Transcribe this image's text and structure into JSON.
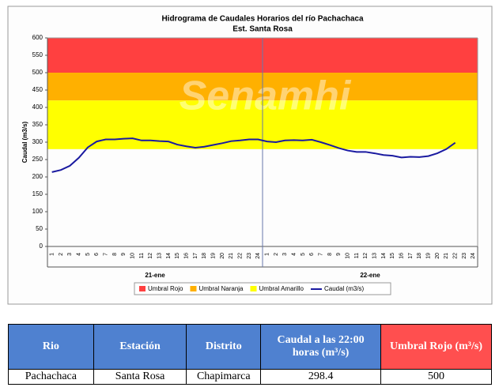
{
  "chart_data": {
    "type": "line",
    "title": "Hidrograma de Caudales Horarios del río Pachachaca",
    "subtitle": "Est. Santa Rosa",
    "y_label": "Caudal (m3/s)",
    "watermark": "Senamhi",
    "categories": [
      "1",
      "2",
      "3",
      "4",
      "5",
      "6",
      "7",
      "8",
      "9",
      "10",
      "11",
      "12",
      "13",
      "14",
      "15",
      "16",
      "17",
      "18",
      "19",
      "20",
      "21",
      "22",
      "23",
      "24",
      "1",
      "2",
      "3",
      "4",
      "5",
      "6",
      "7",
      "8",
      "9",
      "10",
      "11",
      "12",
      "13",
      "14",
      "15",
      "16",
      "17",
      "18",
      "19",
      "20",
      "21",
      "22",
      "23",
      "24"
    ],
    "category_groups": [
      "21-ene",
      "22-ene"
    ],
    "bands": [
      {
        "name": "Umbral Rojo",
        "color": "#ff4040",
        "from": 500,
        "to": 600
      },
      {
        "name": "Umbral Naranja",
        "color": "#ffb000",
        "from": 420,
        "to": 500
      },
      {
        "name": "Umbral Amarillo",
        "color": "#ffff00",
        "from": 280,
        "to": 420
      }
    ],
    "series": [
      {
        "name": "Caudal (m3/s)",
        "color": "#1a1aa0",
        "values": [
          214,
          220,
          232,
          255,
          285,
          302,
          308,
          308,
          310,
          311,
          305,
          305,
          303,
          302,
          293,
          288,
          284,
          287,
          292,
          297,
          303,
          305,
          308,
          308,
          302,
          300,
          305,
          306,
          305,
          307,
          300,
          292,
          283,
          276,
          272,
          272,
          268,
          263,
          261,
          256,
          258,
          257,
          260,
          268,
          280,
          298.4,
          null,
          null
        ]
      }
    ],
    "ylim": [
      0,
      600
    ],
    "yticks": [
      0,
      50,
      100,
      150,
      200,
      250,
      300,
      350,
      400,
      450,
      500,
      550,
      600
    ],
    "grid": false
  },
  "table": {
    "header": [
      "Rio",
      "Estación",
      "Distrito",
      "Caudal a las 22:00 horas (m³/s)",
      "Umbral Rojo (m³/s)"
    ],
    "rows": [
      [
        "Pachachaca",
        "Santa Rosa",
        "Chapimarca",
        "298.4",
        "500"
      ]
    ]
  }
}
